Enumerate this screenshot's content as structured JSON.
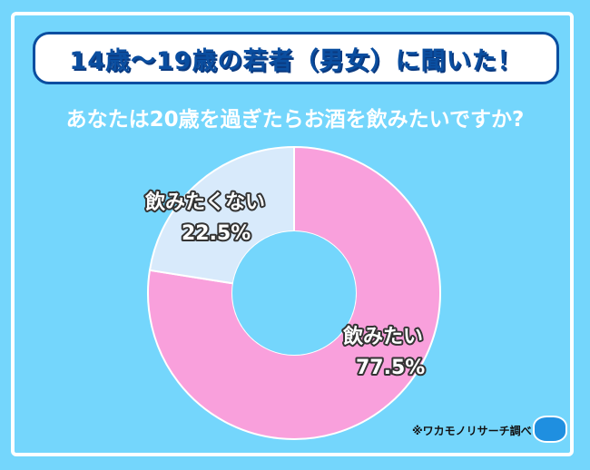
{
  "header": {
    "title": "14歳～19歳の若者（男女）に聞いた！",
    "question": "あなたは20歳を過ぎたらお酒を飲みたいですか?"
  },
  "chart_data": {
    "type": "pie",
    "variant": "donut",
    "start": "top",
    "direction": "clockwise",
    "categories": [
      "飲みたい",
      "飲みたくない"
    ],
    "values": [
      77.5,
      22.5
    ],
    "value_labels": [
      "77.5%",
      "22.5%"
    ],
    "colors": [
      "#f9a0dc",
      "#d8eafb"
    ]
  },
  "footer": {
    "source": "※ワカモノリサーチ調べ",
    "logo_text": "ワカモノリサーチ"
  },
  "colors": {
    "background": "#74d6fc",
    "accent": "#0a4ea0"
  }
}
